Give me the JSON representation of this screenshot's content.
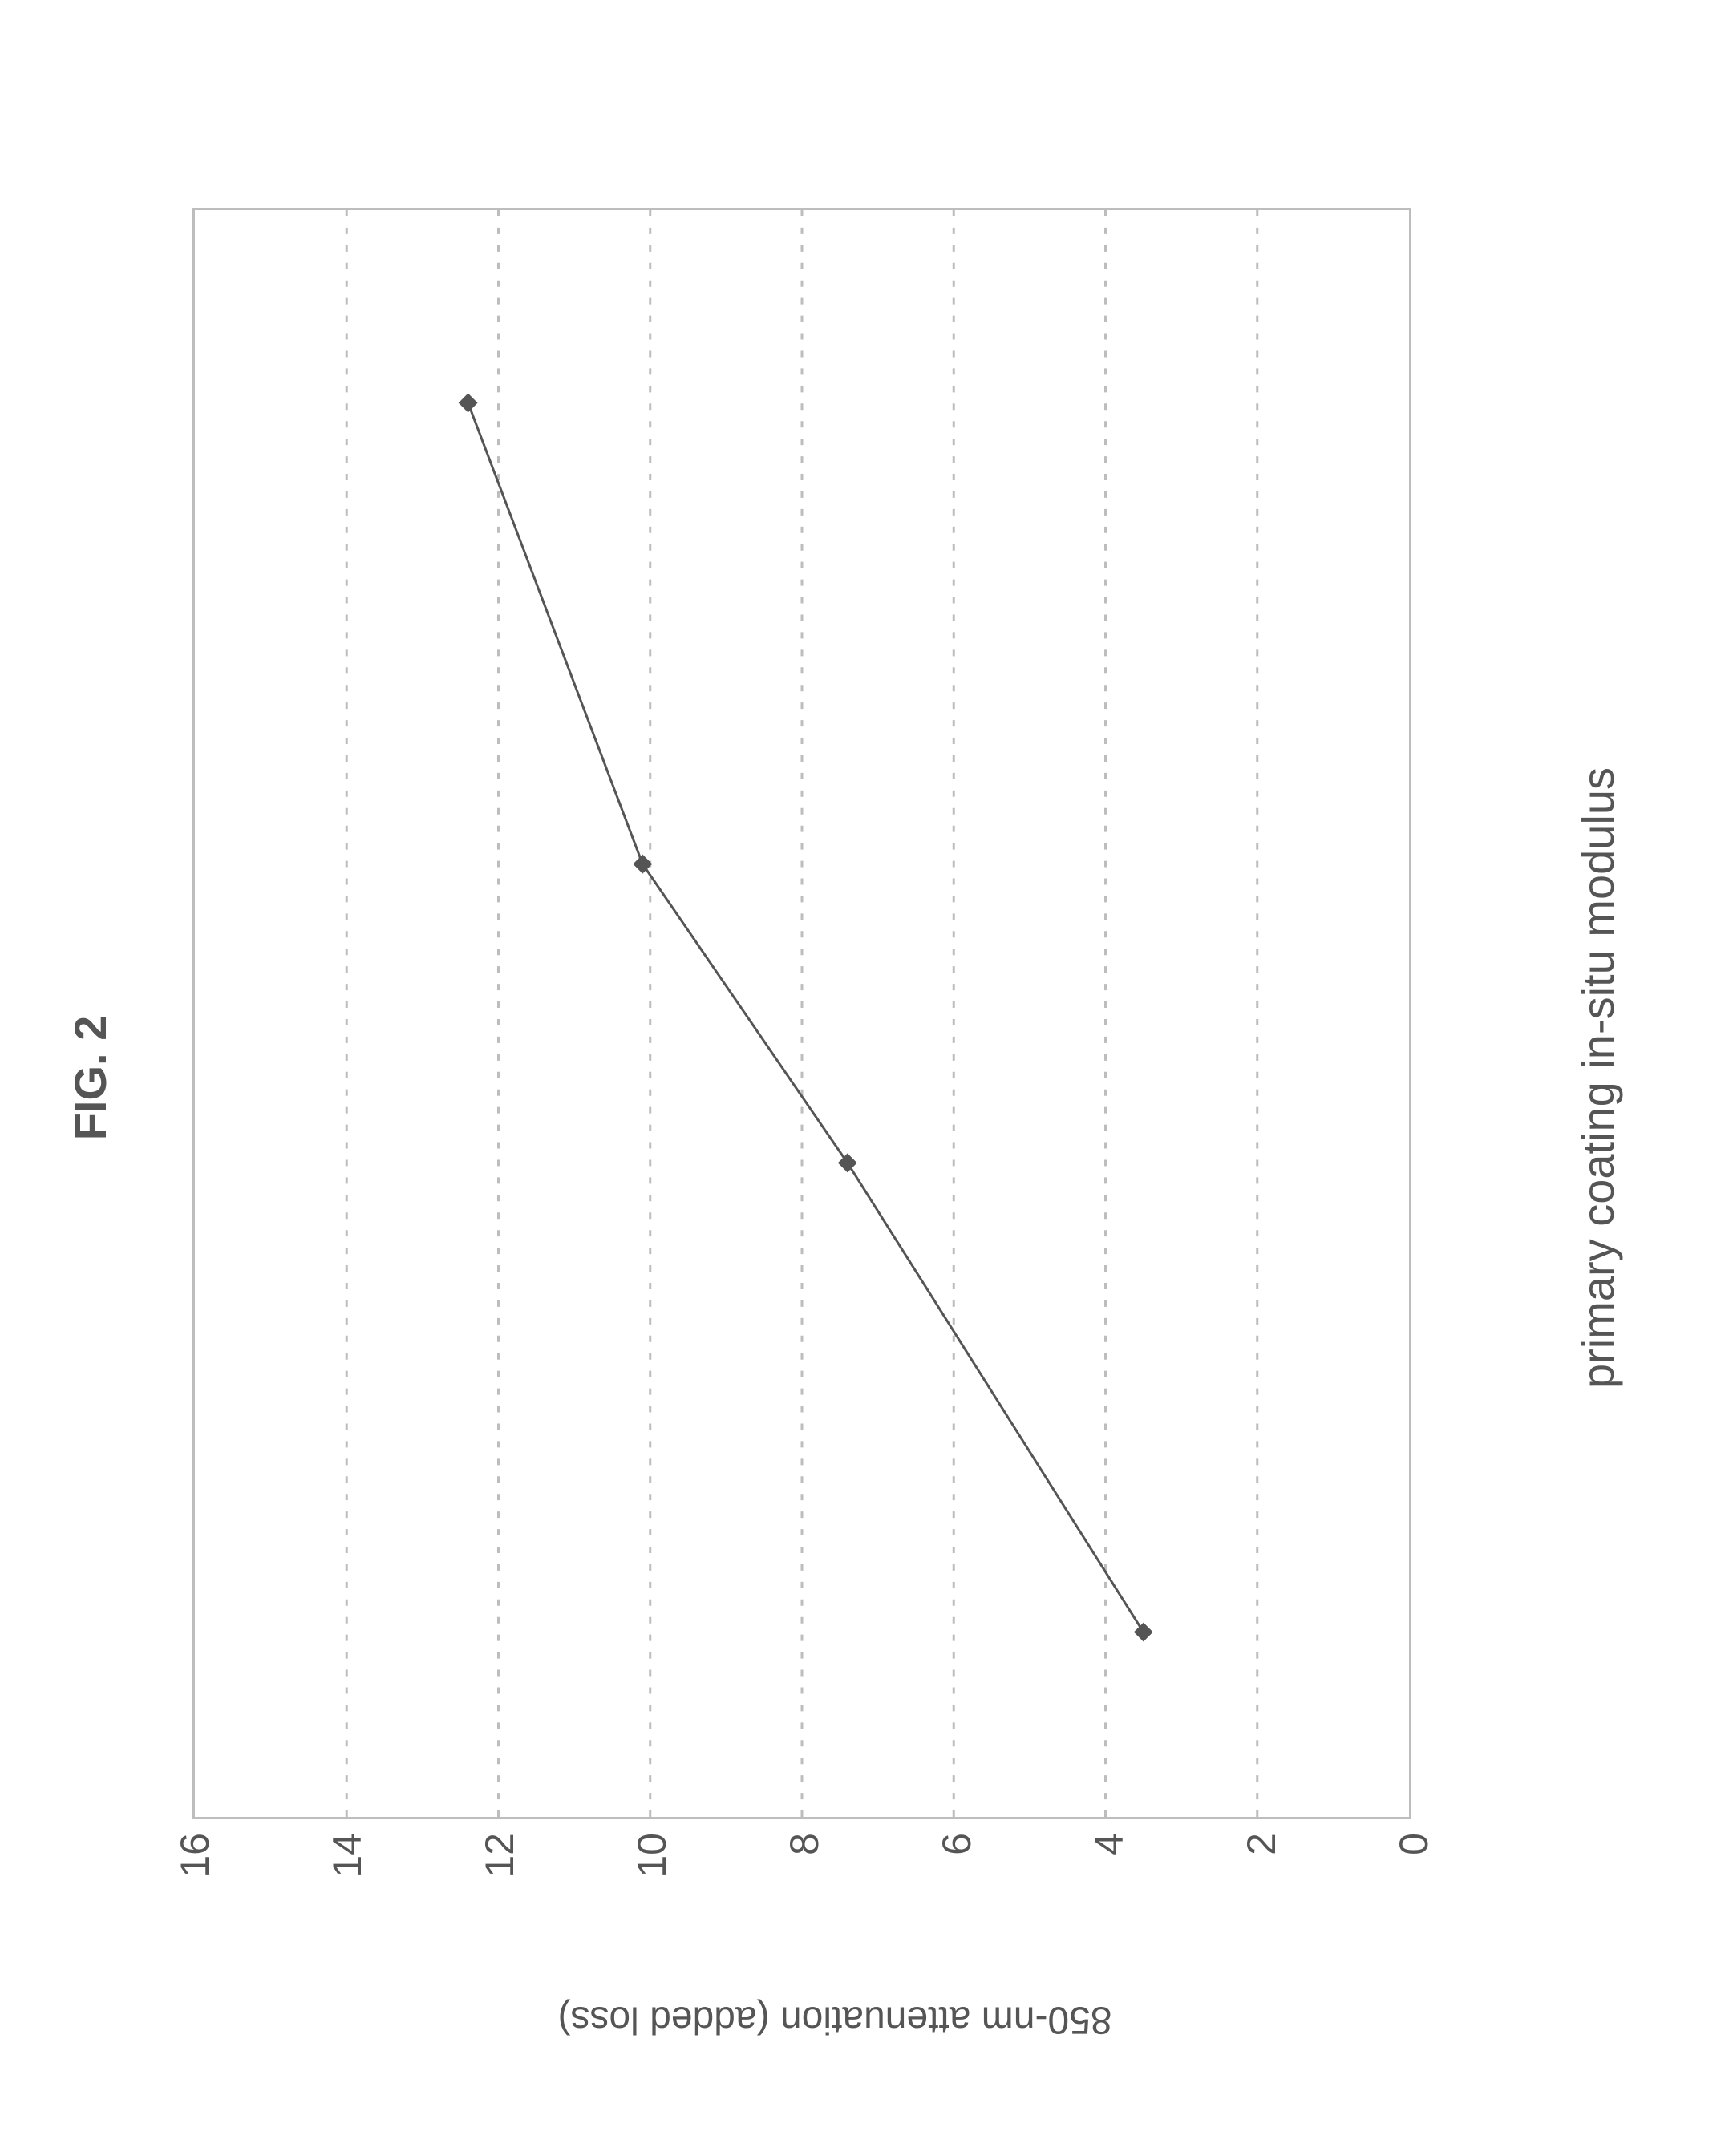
{
  "figure": {
    "title": "FIG. 2",
    "type": "line",
    "xlabel": "primary coating in-situ modulus",
    "ylabel": "850-nm attenuation (added loss)",
    "ylim": [
      0,
      16
    ],
    "ytick_step": 2,
    "yticks": [
      0,
      2,
      4,
      6,
      8,
      10,
      12,
      14,
      16
    ],
    "x_range_fractions": [
      0,
      1
    ],
    "points": [
      {
        "xf": 0.115,
        "y": 3.5
      },
      {
        "xf": 0.407,
        "y": 7.4
      },
      {
        "xf": 0.593,
        "y": 10.1
      },
      {
        "xf": 0.88,
        "y": 12.4
      }
    ],
    "line_color": "#555555",
    "line_width": 3,
    "marker_style": "diamond",
    "marker_size": 24,
    "marker_color": "#555555",
    "border_color": "#bdbdbd",
    "grid_color": "#bdbdbd",
    "grid_dash": "8 14",
    "background_color": "#ffffff",
    "tick_font_size": 50,
    "label_font_size": 56,
    "title_font_size": 56,
    "text_color": "#555555"
  }
}
